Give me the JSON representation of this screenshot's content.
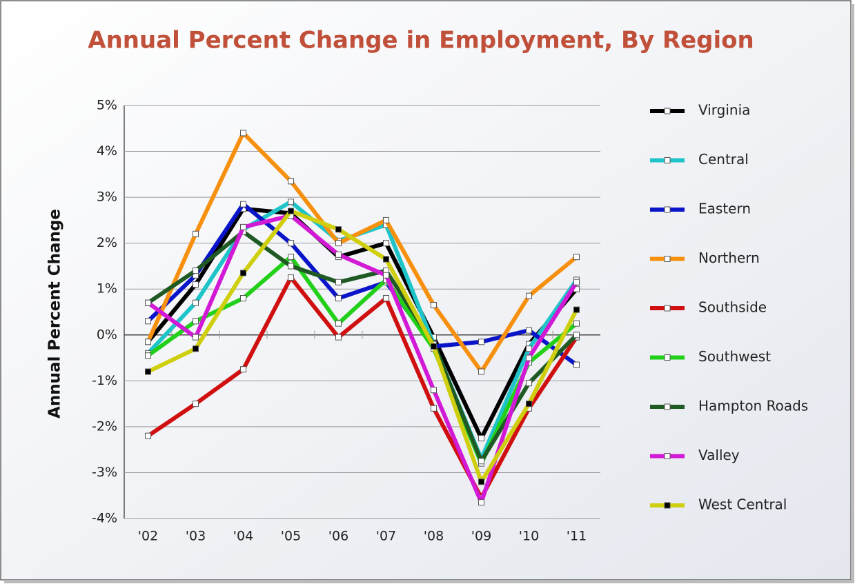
{
  "chart_data": {
    "type": "line",
    "title": "Annual Percent Change in Employment, By Region",
    "y_label": "Annual Percent Change",
    "categories": [
      "'02",
      "'03",
      "'04",
      "'05",
      "'06",
      "'07",
      "'08",
      "'09",
      "'10",
      "'11"
    ],
    "ylim": [
      -4,
      5
    ],
    "yticks": [
      {
        "value": -4,
        "label": "-4%"
      },
      {
        "value": -3,
        "label": "-3%"
      },
      {
        "value": -2,
        "label": "-2%"
      },
      {
        "value": -1,
        "label": "-1%"
      },
      {
        "value": 0,
        "label": "0%"
      },
      {
        "value": 1,
        "label": "1%"
      },
      {
        "value": 2,
        "label": "2%"
      },
      {
        "value": 3,
        "label": "3%"
      },
      {
        "value": 4,
        "label": "4%"
      },
      {
        "value": 5,
        "label": "5%"
      }
    ],
    "grid": true,
    "legend": "right",
    "series": [
      {
        "name": "Virginia",
        "color": "#000000",
        "marker_color": "#ffffff",
        "values": [
          -0.15,
          1.1,
          2.75,
          2.65,
          1.7,
          2.0,
          -0.05,
          -2.25,
          -0.2,
          1.0
        ]
      },
      {
        "name": "Central",
        "color": "#1fc4c8",
        "marker_color": "#ffffff",
        "values": [
          -0.4,
          0.7,
          2.3,
          2.9,
          2.05,
          2.4,
          -0.2,
          -2.7,
          -0.3,
          1.2
        ]
      },
      {
        "name": "Eastern",
        "color": "#0a14c8",
        "marker_color": "#ffffff",
        "values": [
          0.3,
          1.3,
          2.85,
          2.0,
          0.8,
          1.15,
          -0.25,
          -0.15,
          0.1,
          -0.65
        ]
      },
      {
        "name": "Northern",
        "color": "#f7900f",
        "marker_color": "#ffffff",
        "values": [
          -0.15,
          2.2,
          4.4,
          3.35,
          2.0,
          2.5,
          0.65,
          -0.8,
          0.85,
          1.7
        ]
      },
      {
        "name": "Southside",
        "color": "#d01010",
        "marker_color": "#ffffff",
        "values": [
          -2.2,
          -1.5,
          -0.75,
          1.25,
          -0.05,
          0.8,
          -1.6,
          -3.55,
          -1.6,
          -0.05
        ]
      },
      {
        "name": "Southwest",
        "color": "#22d01a",
        "marker_color": "#ffffff",
        "values": [
          -0.45,
          0.3,
          0.8,
          1.7,
          0.25,
          1.2,
          -0.3,
          -2.8,
          -0.6,
          0.25
        ]
      },
      {
        "name": "Hampton Roads",
        "color": "#1f5a24",
        "marker_color": "#ffffff",
        "values": [
          0.7,
          1.4,
          2.25,
          1.5,
          1.15,
          1.4,
          -0.2,
          -2.75,
          -1.05,
          0.0
        ]
      },
      {
        "name": "Valley",
        "color": "#d21ad6",
        "marker_color": "#ffffff",
        "values": [
          0.7,
          -0.05,
          2.35,
          2.6,
          1.75,
          1.3,
          -1.2,
          -3.65,
          -0.5,
          1.15
        ]
      },
      {
        "name": "West Central",
        "color": "#cfcf10",
        "marker_color": "#000000",
        "values": [
          -0.8,
          -0.3,
          1.35,
          2.7,
          2.3,
          1.65,
          -0.25,
          -3.2,
          -1.5,
          0.55
        ]
      }
    ]
  }
}
